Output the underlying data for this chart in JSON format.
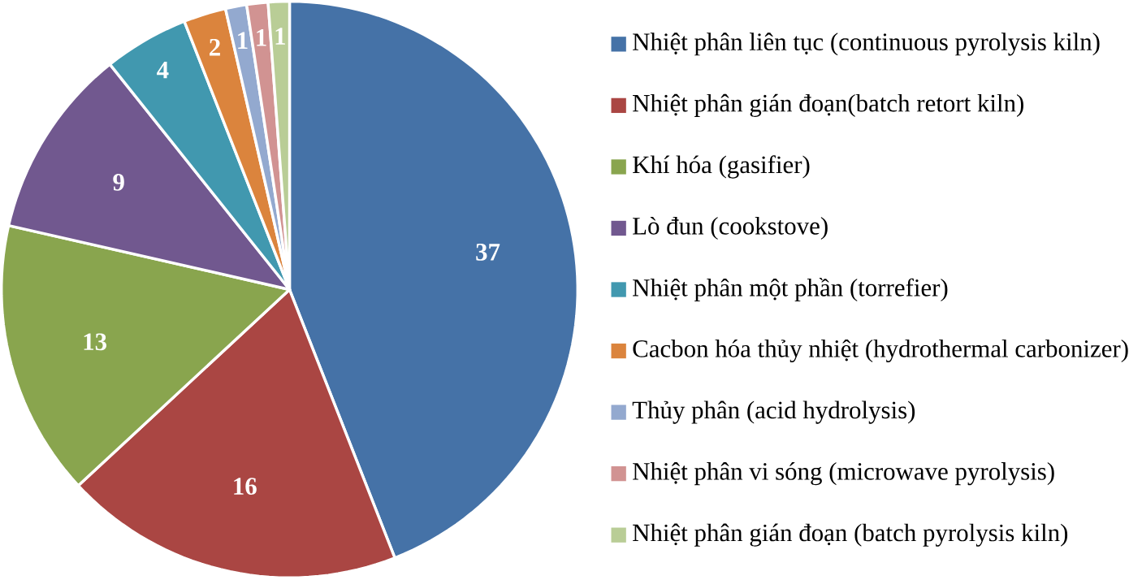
{
  "chart_data": {
    "type": "pie",
    "categories": [
      "Nhiệt phân liên tục (continuous pyrolysis kiln)",
      "Nhiệt phân gián đoạn(batch retort kiln)",
      "Khí hóa (gasifier)",
      "Lò đun (cookstove)",
      "Nhiệt phân một phần  (torrefier)",
      "Cacbon hóa thủy nhiệt (hydrothermal carbonizer)",
      "Thủy phân (acid hydrolysis)",
      "Nhiệt phân vi sóng (microwave pyrolysis)",
      "Nhiệt phân gián đoạn (batch pyrolysis kiln)"
    ],
    "values": [
      37,
      16,
      13,
      9,
      4,
      2,
      1,
      1,
      1
    ],
    "colors": [
      "#4572a7",
      "#aa4643",
      "#89a54e",
      "#71588f",
      "#4198af",
      "#db843d",
      "#93a9cf",
      "#d19392",
      "#b9cd96"
    ],
    "data_labels": true,
    "legend": "right"
  }
}
